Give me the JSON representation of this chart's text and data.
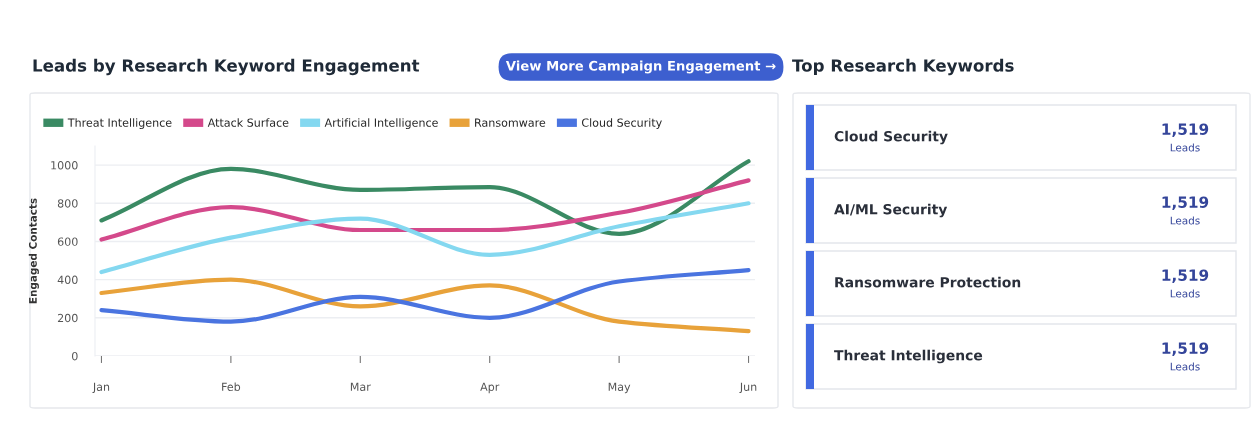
{
  "chart_data": [
    {
      "type": "line",
      "title": "Leads by Research Keyword Engagement",
      "ylabel": "Engaged Contacts",
      "categories": [
        "Jan",
        "Feb",
        "Mar",
        "Apr",
        "May",
        "Jun"
      ],
      "series": [
        {
          "name": "Threat Intelligence",
          "color": "#3a8a63",
          "values": [
            710,
            980,
            870,
            885,
            640,
            1020
          ]
        },
        {
          "name": "Attack Surface",
          "color": "#d4498b",
          "values": [
            610,
            780,
            660,
            660,
            750,
            920
          ]
        },
        {
          "name": "Artificial Intelligence",
          "color": "#84d8f0",
          "values": [
            440,
            620,
            720,
            530,
            680,
            800
          ]
        },
        {
          "name": "Ransomware",
          "color": "#e8a23a",
          "values": [
            330,
            400,
            260,
            370,
            180,
            130
          ]
        },
        {
          "name": "Cloud Security",
          "color": "#4a74e0",
          "values": [
            240,
            180,
            310,
            200,
            390,
            450
          ]
        }
      ],
      "ylim": [
        0,
        1100
      ],
      "yticks": [
        0,
        200,
        400,
        600,
        800,
        1000
      ],
      "grid": "y",
      "legend": "top left",
      "marker": "none",
      "line_style": "solid",
      "annotations": [
        "View More Campaign Engagement →"
      ]
    },
    {
      "type": "other",
      "title": "Top Research Keywords",
      "categories": [
        "Cloud Security",
        "AI/ML Security",
        "Ransomware Protection",
        "Threat Intelligence"
      ],
      "value_labels": [
        "1,519",
        "1,519",
        "1,519",
        "1,519"
      ],
      "annotations": [
        "Leads",
        "Leads",
        "Leads",
        "Leads"
      ]
    }
  ]
}
